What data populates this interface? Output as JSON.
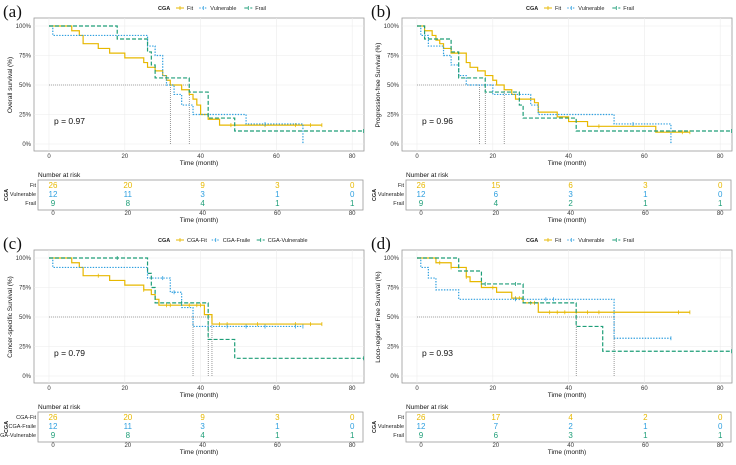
{
  "chart_data": [
    {
      "type": "line",
      "panel_label": "(a)",
      "legend_title": "CGA",
      "ylabel": "Overall survival (%)",
      "xlabel": "Time (month)",
      "xlim": [
        0,
        83
      ],
      "ylim": [
        0,
        100
      ],
      "x_ticks": [
        "0",
        "20",
        "40",
        "60",
        "80"
      ],
      "y_ticks": [
        "0%",
        "25%",
        "50%",
        "75%",
        "100%"
      ],
      "p_value": "p = 0.97",
      "medians": [
        32,
        37
      ],
      "series": [
        {
          "name": "Fit",
          "color": "#E7B800",
          "style": "solid",
          "steps": [
            [
              0,
              100
            ],
            [
              6,
              96
            ],
            [
              8,
              92
            ],
            [
              9,
              85
            ],
            [
              13,
              81
            ],
            [
              16,
              77
            ],
            [
              20,
              73
            ],
            [
              25,
              69
            ],
            [
              26,
              65
            ],
            [
              28,
              62
            ],
            [
              30,
              58
            ],
            [
              31,
              54
            ],
            [
              32,
              50
            ],
            [
              35,
              46
            ],
            [
              37,
              42
            ],
            [
              38,
              38
            ],
            [
              39,
              33
            ],
            [
              40,
              25
            ],
            [
              42,
              21
            ],
            [
              45,
              16
            ],
            [
              72,
              16
            ]
          ],
          "censored": [
            48,
            57,
            65,
            69,
            72
          ]
        },
        {
          "name": "Vulnerable",
          "color": "#2E9FDF",
          "style": "dotted",
          "steps": [
            [
              0,
              100
            ],
            [
              1,
              92
            ],
            [
              26,
              83
            ],
            [
              28,
              75
            ],
            [
              30,
              58
            ],
            [
              31,
              50
            ],
            [
              33,
              42
            ],
            [
              35,
              33
            ],
            [
              38,
              25
            ],
            [
              52,
              17
            ],
            [
              67,
              0
            ],
            [
              67,
              0
            ]
          ],
          "censored": [
            57
          ]
        },
        {
          "name": "Frail",
          "color": "#1E9E78",
          "style": "dashed",
          "steps": [
            [
              0,
              100
            ],
            [
              18,
              89
            ],
            [
              26,
              78
            ],
            [
              27,
              67
            ],
            [
              28,
              56
            ],
            [
              37,
              44
            ],
            [
              42,
              22
            ],
            [
              49,
              11
            ],
            [
              83,
              11
            ]
          ],
          "censored": [
            83
          ]
        }
      ],
      "risk_table": {
        "title": "Number at risk",
        "group_label": "CGA",
        "times": [
          "0",
          "20",
          "40",
          "60",
          "80"
        ],
        "xlabel": "Time (month)",
        "rows": [
          {
            "label": "Fit",
            "values": [
              "26",
              "20",
              "9",
              "3",
              "0"
            ]
          },
          {
            "label": "Vulnerable",
            "values": [
              "12",
              "11",
              "3",
              "1",
              "0"
            ]
          },
          {
            "label": "Frail",
            "values": [
              "9",
              "8",
              "4",
              "1",
              "1"
            ]
          }
        ]
      }
    },
    {
      "type": "line",
      "panel_label": "(b)",
      "legend_title": "CGA",
      "ylabel": "Progression-free Survival (%)",
      "xlabel": "Time (month)",
      "xlim": [
        0,
        83
      ],
      "ylim": [
        0,
        100
      ],
      "x_ticks": [
        "0",
        "20",
        "40",
        "60",
        "80"
      ],
      "y_ticks": [
        "0%",
        "25%",
        "50%",
        "75%",
        "100%"
      ],
      "p_value": "p = 0.96",
      "medians": [
        16.5,
        18,
        23
      ],
      "series": [
        {
          "name": "Fit",
          "color": "#E7B800",
          "style": "solid",
          "steps": [
            [
              0,
              100
            ],
            [
              2,
              96
            ],
            [
              4,
              92
            ],
            [
              5,
              88
            ],
            [
              6,
              85
            ],
            [
              7,
              81
            ],
            [
              9,
              77
            ],
            [
              13,
              69
            ],
            [
              14,
              65
            ],
            [
              16,
              62
            ],
            [
              18,
              58
            ],
            [
              20,
              54
            ],
            [
              21,
              50
            ],
            [
              23,
              46
            ],
            [
              25,
              42
            ],
            [
              26,
              38
            ],
            [
              31,
              35
            ],
            [
              32,
              27
            ],
            [
              37,
              23
            ],
            [
              40,
              19
            ],
            [
              45,
              15
            ],
            [
              63,
              10
            ],
            [
              72,
              10
            ]
          ],
          "censored": [
            48,
            70,
            72
          ]
        },
        {
          "name": "Vulnerable",
          "color": "#2E9FDF",
          "style": "dotted",
          "steps": [
            [
              0,
              100
            ],
            [
              1,
              92
            ],
            [
              3,
              83
            ],
            [
              7,
              75
            ],
            [
              9,
              67
            ],
            [
              11,
              58
            ],
            [
              13,
              50
            ],
            [
              20,
              42
            ],
            [
              30,
              33
            ],
            [
              32,
              25
            ],
            [
              52,
              17
            ],
            [
              67,
              0
            ],
            [
              67,
              0
            ]
          ],
          "censored": [
            57
          ]
        },
        {
          "name": "Frail",
          "color": "#1E9E78",
          "style": "dashed",
          "steps": [
            [
              0,
              100
            ],
            [
              2,
              89
            ],
            [
              9,
              78
            ],
            [
              11,
              56
            ],
            [
              18,
              44
            ],
            [
              27,
              33
            ],
            [
              28,
              22
            ],
            [
              42,
              11
            ],
            [
              83,
              11
            ]
          ],
          "censored": [
            83
          ]
        }
      ],
      "risk_table": {
        "title": "Number at risk",
        "group_label": "CGA",
        "times": [
          "0",
          "20",
          "40",
          "60",
          "80"
        ],
        "xlabel": "Time (month)",
        "rows": [
          {
            "label": "Fit",
            "values": [
              "26",
              "15",
              "6",
              "3",
              "0"
            ]
          },
          {
            "label": "Vulnerable",
            "values": [
              "12",
              "6",
              "3",
              "1",
              "0"
            ]
          },
          {
            "label": "Frail",
            "values": [
              "9",
              "4",
              "2",
              "1",
              "1"
            ]
          }
        ]
      }
    },
    {
      "type": "line",
      "panel_label": "(c)",
      "legend_title": "CGA",
      "ylabel": "Cancer-specific Survival (%)",
      "xlabel": "Time (month)",
      "xlim": [
        0,
        83
      ],
      "ylim": [
        0,
        100
      ],
      "x_ticks": [
        "0",
        "20",
        "40",
        "60",
        "80"
      ],
      "y_ticks": [
        "0%",
        "25%",
        "50%",
        "75%",
        "100%"
      ],
      "p_value": "p = 0.79",
      "medians": [
        38,
        42,
        43
      ],
      "series": [
        {
          "name": "CGA-Fit",
          "color": "#E7B800",
          "style": "solid",
          "steps": [
            [
              0,
              100
            ],
            [
              6,
              96
            ],
            [
              8,
              92
            ],
            [
              9,
              85
            ],
            [
              16,
              81
            ],
            [
              20,
              77
            ],
            [
              25,
              73
            ],
            [
              27,
              69
            ],
            [
              28,
              65
            ],
            [
              29,
              60
            ],
            [
              41,
              52
            ],
            [
              43,
              44
            ],
            [
              72,
              44
            ]
          ],
          "censored": [
            13,
            25,
            31,
            32,
            37,
            39,
            40,
            45,
            47,
            55,
            65,
            69,
            72
          ]
        },
        {
          "name": "CGA-Fraile",
          "color": "#2E9FDF",
          "style": "dotted",
          "steps": [
            [
              0,
              100
            ],
            [
              1,
              92
            ],
            [
              26,
              83
            ],
            [
              32,
              71
            ],
            [
              35,
              58
            ],
            [
              38,
              42
            ],
            [
              67,
              42
            ]
          ],
          "censored": [
            30,
            33,
            47,
            52,
            57,
            65,
            67
          ]
        },
        {
          "name": "CGA-Vulnerable",
          "color": "#1E9E78",
          "style": "dashed",
          "steps": [
            [
              0,
              100
            ],
            [
              26,
              87
            ],
            [
              27,
              75
            ],
            [
              28,
              62
            ],
            [
              42,
              31
            ],
            [
              49,
              15
            ],
            [
              83,
              15
            ]
          ],
          "censored": [
            18,
            35,
            83
          ]
        }
      ],
      "risk_table": {
        "title": "Number at risk",
        "group_label": "CGA",
        "times": [
          "0",
          "20",
          "40",
          "60",
          "80"
        ],
        "xlabel": "Time (month)",
        "rows": [
          {
            "label": "CGA-Fit",
            "values": [
              "26",
              "20",
              "9",
              "3",
              "0"
            ]
          },
          {
            "label": "CGA-Fraile",
            "values": [
              "12",
              "11",
              "3",
              "1",
              "0"
            ]
          },
          {
            "label": "CGA-Vulnerable",
            "values": [
              "9",
              "8",
              "4",
              "1",
              "1"
            ]
          }
        ]
      }
    },
    {
      "type": "line",
      "panel_label": "(d)",
      "legend_title": "CGA",
      "ylabel": "Loco-regional Free Survival (%)",
      "xlabel": "Time (month)",
      "xlim": [
        0,
        83
      ],
      "ylim": [
        0,
        100
      ],
      "x_ticks": [
        "0",
        "20",
        "40",
        "60",
        "80"
      ],
      "y_ticks": [
        "0%",
        "25%",
        "50%",
        "75%",
        "100%"
      ],
      "p_value": "p = 0.93",
      "medians": [
        42,
        52
      ],
      "series": [
        {
          "name": "Fit",
          "color": "#E7B800",
          "style": "solid",
          "steps": [
            [
              0,
              100
            ],
            [
              5,
              96
            ],
            [
              9,
              92
            ],
            [
              13,
              84
            ],
            [
              14,
              80
            ],
            [
              17,
              75
            ],
            [
              21,
              71
            ],
            [
              25,
              66
            ],
            [
              28,
              62
            ],
            [
              32,
              54
            ],
            [
              72,
              54
            ]
          ],
          "censored": [
            6,
            9,
            13,
            20,
            26,
            27,
            30,
            31,
            35,
            37,
            39,
            42,
            45,
            48,
            69,
            72
          ]
        },
        {
          "name": "Vulnerable",
          "color": "#2E9FDF",
          "style": "dotted",
          "steps": [
            [
              0,
              100
            ],
            [
              1,
              92
            ],
            [
              3,
              83
            ],
            [
              5,
              73
            ],
            [
              11,
              65
            ],
            [
              52,
              32
            ],
            [
              67,
              32
            ]
          ],
          "censored": [
            26,
            34,
            36,
            67
          ]
        },
        {
          "name": "Frail",
          "color": "#1E9E78",
          "style": "dashed",
          "steps": [
            [
              0,
              100
            ],
            [
              11,
              89
            ],
            [
              17,
              78
            ],
            [
              28,
              62
            ],
            [
              42,
              42
            ],
            [
              49,
              21
            ],
            [
              83,
              21
            ]
          ],
          "censored": [
            18,
            26,
            83
          ]
        }
      ],
      "risk_table": {
        "title": "Number at risk",
        "group_label": "CGA",
        "times": [
          "0",
          "20",
          "40",
          "60",
          "80"
        ],
        "xlabel": "Time (month)",
        "rows": [
          {
            "label": "Fit",
            "values": [
              "26",
              "17",
              "4",
              "2",
              "0"
            ]
          },
          {
            "label": "Vulnerable",
            "values": [
              "12",
              "7",
              "2",
              "1",
              "0"
            ]
          },
          {
            "label": "Frail",
            "values": [
              "9",
              "6",
              "3",
              "1",
              "1"
            ]
          }
        ]
      }
    }
  ]
}
